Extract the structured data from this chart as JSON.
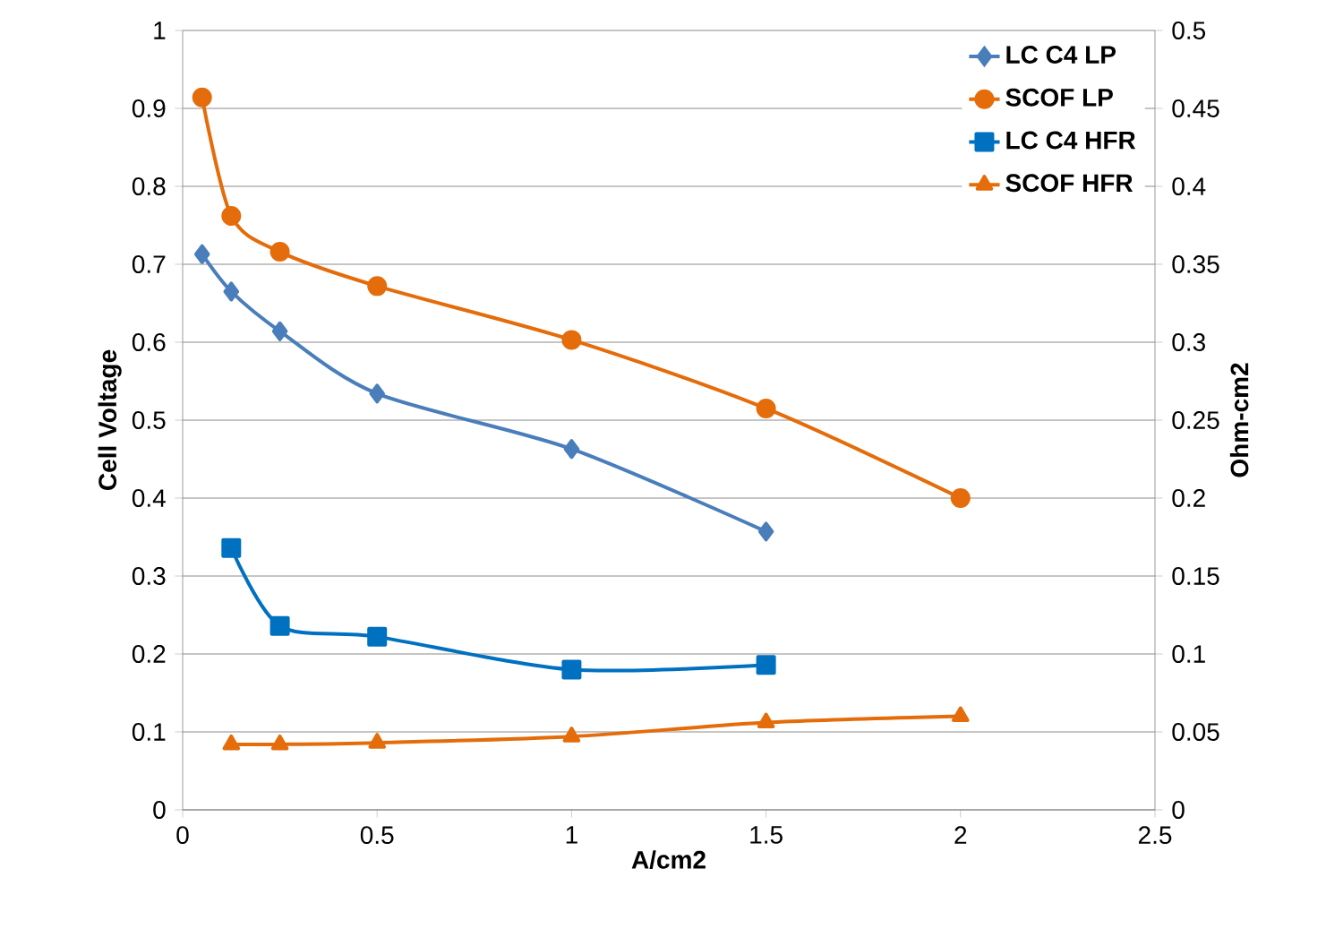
{
  "chart_data": {
    "type": "line",
    "xlabel": "A/cm2",
    "ylabel": "Cell  Voltage",
    "y2label": "Ohm-cm2",
    "xlim": [
      0,
      2.5
    ],
    "xticks": [
      0,
      0.5,
      1,
      1.5,
      2,
      2.5
    ],
    "ylim": [
      0,
      1
    ],
    "yticks": [
      0,
      0.1,
      0.2,
      0.3,
      0.4,
      0.5,
      0.6,
      0.7,
      0.8,
      0.9,
      1
    ],
    "y2lim": [
      0,
      0.5
    ],
    "y2ticks": [
      0,
      0.05,
      0.1,
      0.15,
      0.2,
      0.25,
      0.3,
      0.35,
      0.4,
      0.45,
      0.5
    ],
    "grid": "y",
    "legend": "top right",
    "series": [
      {
        "name": "LC C4 LP",
        "color": "#4a7ebb",
        "marker": "diamond",
        "x": [
          0.05,
          0.125,
          0.25,
          0.5,
          1,
          1.5
        ],
        "values": [
          0.713,
          0.665,
          0.614,
          0.534,
          0.463,
          0.357
        ]
      },
      {
        "name": "SCOF LP",
        "color": "#e46c0a",
        "marker": "circle",
        "x": [
          0.05,
          0.125,
          0.25,
          0.5,
          1,
          1.5,
          2
        ],
        "values": [
          0.914,
          0.762,
          0.716,
          0.672,
          0.603,
          0.515,
          0.4
        ]
      },
      {
        "name": "LC C4 HFR",
        "color": "#0070c0",
        "marker": "square",
        "axis": "y2",
        "x": [
          0.125,
          0.25,
          0.5,
          1,
          1.5
        ],
        "values": [
          0.168,
          0.118,
          0.111,
          0.09,
          0.093
        ]
      },
      {
        "name": "SCOF HFR",
        "color": "#e46c0a",
        "marker": "triangle",
        "axis": "y2",
        "x": [
          0.125,
          0.25,
          0.5,
          1,
          1.5,
          2
        ],
        "values": [
          0.042,
          0.042,
          0.043,
          0.047,
          0.056,
          0.06
        ]
      }
    ]
  }
}
